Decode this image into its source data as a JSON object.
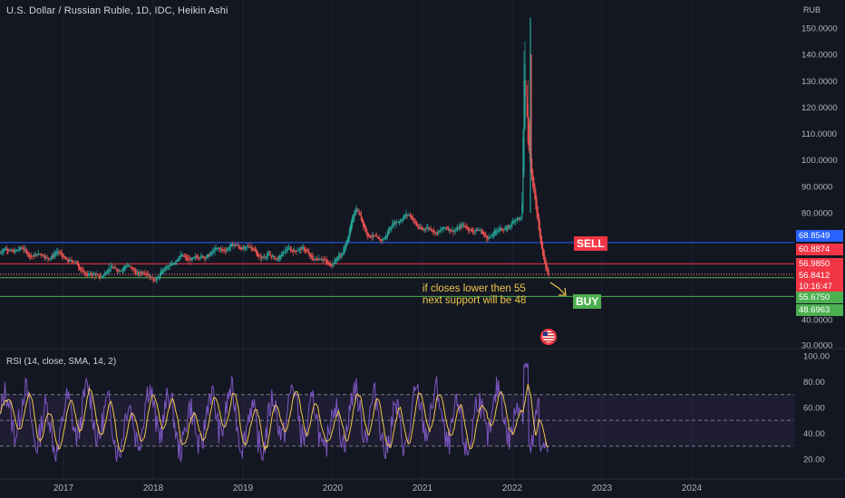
{
  "header": {
    "title": "U.S. Dollar / Russian Ruble, 1D, IDC, Heikin Ashi",
    "unit": "RUB"
  },
  "rsi": {
    "label": "RSI (14, close, SMA, 14, 2)",
    "ticks": [
      "100.00",
      "80.00",
      "60.00",
      "40.00",
      "20.00"
    ],
    "upper_band": 70,
    "lower_band": 30
  },
  "annotations": {
    "sell_label": "SELL",
    "buy_label": "BUY",
    "note_line1": "if closes lower then 55",
    "note_line2": "next support will be 48"
  },
  "price_labels": {
    "blue": "68.8549",
    "red_top": "60.8874",
    "dark": "56.9850",
    "red_current": "56.8412",
    "countdown": "10:16:47",
    "green_top": "55.6750",
    "green_bottom": "48.6963"
  },
  "colors": {
    "background": "#131722",
    "up": "#26a69a",
    "down": "#ef5350",
    "rsi_line": "#7e57c2",
    "rsi_ma": "#f0c64a",
    "blue_line": "#2962ff",
    "green_line": "#4caf50",
    "red_line": "#f23645"
  },
  "chart_data": {
    "type": "candlestick",
    "title": "U.S. Dollar / Russian Ruble, 1D, IDC, Heikin Ashi",
    "y_axis_ticks": [
      "150.0000",
      "140.0000",
      "130.0000",
      "120.0000",
      "110.0000",
      "100.0000",
      "90.0000",
      "80.0000",
      "40.0000",
      "30.0000"
    ],
    "x_axis_ticks": [
      "2017",
      "2018",
      "2019",
      "2020",
      "2021",
      "2022",
      "2023",
      "2024"
    ],
    "ylim": [
      30,
      155
    ],
    "price_series": {
      "dates": [
        2016.8,
        2016.95,
        2017.1,
        2017.3,
        2017.5,
        2017.7,
        2017.9,
        2018.05,
        2018.2,
        2018.35,
        2018.5,
        2018.6,
        2018.75,
        2018.9,
        2019.05,
        2019.2,
        2019.4,
        2019.6,
        2019.8,
        2020.0,
        2020.1,
        2020.2,
        2020.25,
        2020.3,
        2020.4,
        2020.5,
        2020.6,
        2020.7,
        2020.8,
        2020.9,
        2021.0,
        2021.1,
        2021.25,
        2021.4,
        2021.55,
        2021.7,
        2021.85,
        2022.0,
        2022.1,
        2022.13,
        2022.16,
        2022.19,
        2022.22,
        2022.28,
        2022.34,
        2022.4
      ],
      "values": [
        65.0,
        64.0,
        60.0,
        57.0,
        59.0,
        58.0,
        57.5,
        57.0,
        61.0,
        62.0,
        63.0,
        66.0,
        67.0,
        66.0,
        66.5,
        65.0,
        64.0,
        65.5,
        64.0,
        62.0,
        63.0,
        75.0,
        80.0,
        78.0,
        72.0,
        71.0,
        73.0,
        76.0,
        78.0,
        76.0,
        74.0,
        75.0,
        74.0,
        73.0,
        73.5,
        72.5,
        74.0,
        75.0,
        77.0,
        135.0,
        110.0,
        100.0,
        90.0,
        78.0,
        65.0,
        56.84
      ]
    },
    "horizontal_levels": [
      {
        "value": 68.8549,
        "color": "blue"
      },
      {
        "value": 60.8874,
        "color": "red"
      },
      {
        "value": 56.985,
        "color": "dark"
      },
      {
        "value": 55.675,
        "color": "green"
      },
      {
        "value": 48.6963,
        "color": "green"
      }
    ],
    "rsi_ylim": [
      15,
      100
    ]
  }
}
